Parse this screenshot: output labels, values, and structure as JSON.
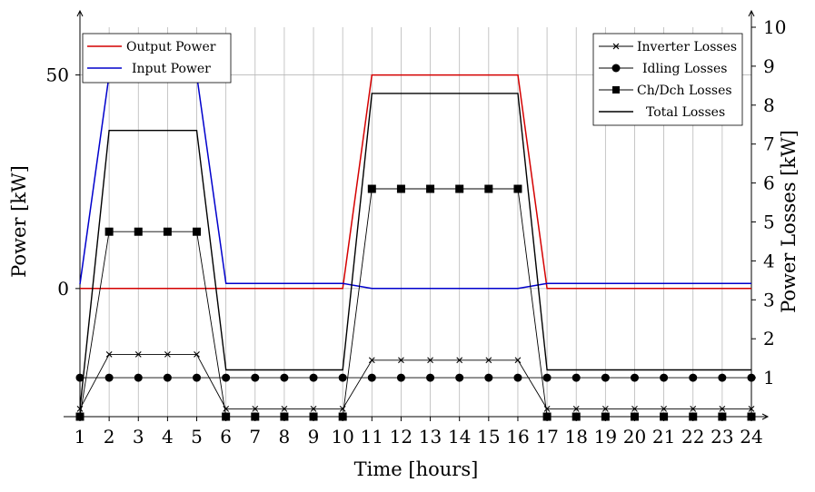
{
  "chart_data": {
    "type": "line",
    "xlabel": "Time [hours]",
    "ylabel_left": "Power [kW]",
    "ylabel_right": "Power Losses [kW]",
    "x": [
      1,
      2,
      3,
      4,
      5,
      6,
      7,
      8,
      9,
      10,
      11,
      12,
      13,
      14,
      15,
      16,
      17,
      18,
      19,
      20,
      21,
      22,
      23,
      24
    ],
    "left_axis": {
      "ylim": [
        -30,
        65
      ],
      "ticks": [
        0,
        50
      ],
      "series": [
        {
          "name": "Output Power",
          "color": "#d40000",
          "values": [
            0,
            0,
            0,
            0,
            0,
            0,
            0,
            0,
            0,
            0,
            50,
            50,
            50,
            50,
            50,
            50,
            0,
            0,
            0,
            0,
            0,
            0,
            0,
            0
          ]
        },
        {
          "name": "Input Power",
          "color": "#0000cc",
          "values": [
            1,
            50,
            50,
            50,
            50,
            1.2,
            1.2,
            1.2,
            1.2,
            1.2,
            0,
            0,
            0,
            0,
            0,
            0,
            1.2,
            1.2,
            1.2,
            1.2,
            1.2,
            1.2,
            1.2,
            1.2
          ]
        }
      ]
    },
    "right_axis": {
      "ylim": [
        0,
        10
      ],
      "ticks": [
        1,
        2,
        3,
        4,
        5,
        6,
        7,
        8,
        9,
        10
      ],
      "series": [
        {
          "name": "Inverter Losses",
          "marker": "x",
          "values": [
            0.2,
            1.6,
            1.6,
            1.6,
            1.6,
            0.2,
            0.2,
            0.2,
            0.2,
            0.2,
            1.45,
            1.45,
            1.45,
            1.45,
            1.45,
            1.45,
            0.2,
            0.2,
            0.2,
            0.2,
            0.2,
            0.2,
            0.2,
            0.2
          ]
        },
        {
          "name": "Idling Losses",
          "marker": "circle",
          "values": [
            1,
            1,
            1,
            1,
            1,
            1,
            1,
            1,
            1,
            1,
            1,
            1,
            1,
            1,
            1,
            1,
            1,
            1,
            1,
            1,
            1,
            1,
            1,
            1
          ]
        },
        {
          "name": "Ch/Dch Losses",
          "marker": "square",
          "values": [
            0,
            4.75,
            4.75,
            4.75,
            4.75,
            0,
            0,
            0,
            0,
            0,
            5.85,
            5.85,
            5.85,
            5.85,
            5.85,
            5.85,
            0,
            0,
            0,
            0,
            0,
            0,
            0,
            0
          ]
        },
        {
          "name": "Total Losses",
          "marker": "none",
          "values": [
            0.2,
            7.35,
            7.35,
            7.35,
            7.35,
            1.2,
            1.2,
            1.2,
            1.2,
            1.2,
            8.3,
            8.3,
            8.3,
            8.3,
            8.3,
            8.3,
            1.2,
            1.2,
            1.2,
            1.2,
            1.2,
            1.2,
            1.2,
            1.2
          ]
        }
      ]
    },
    "grid": "vertical-and-horizontal",
    "legend_left_position": "top-left",
    "legend_right_position": "top-right"
  }
}
